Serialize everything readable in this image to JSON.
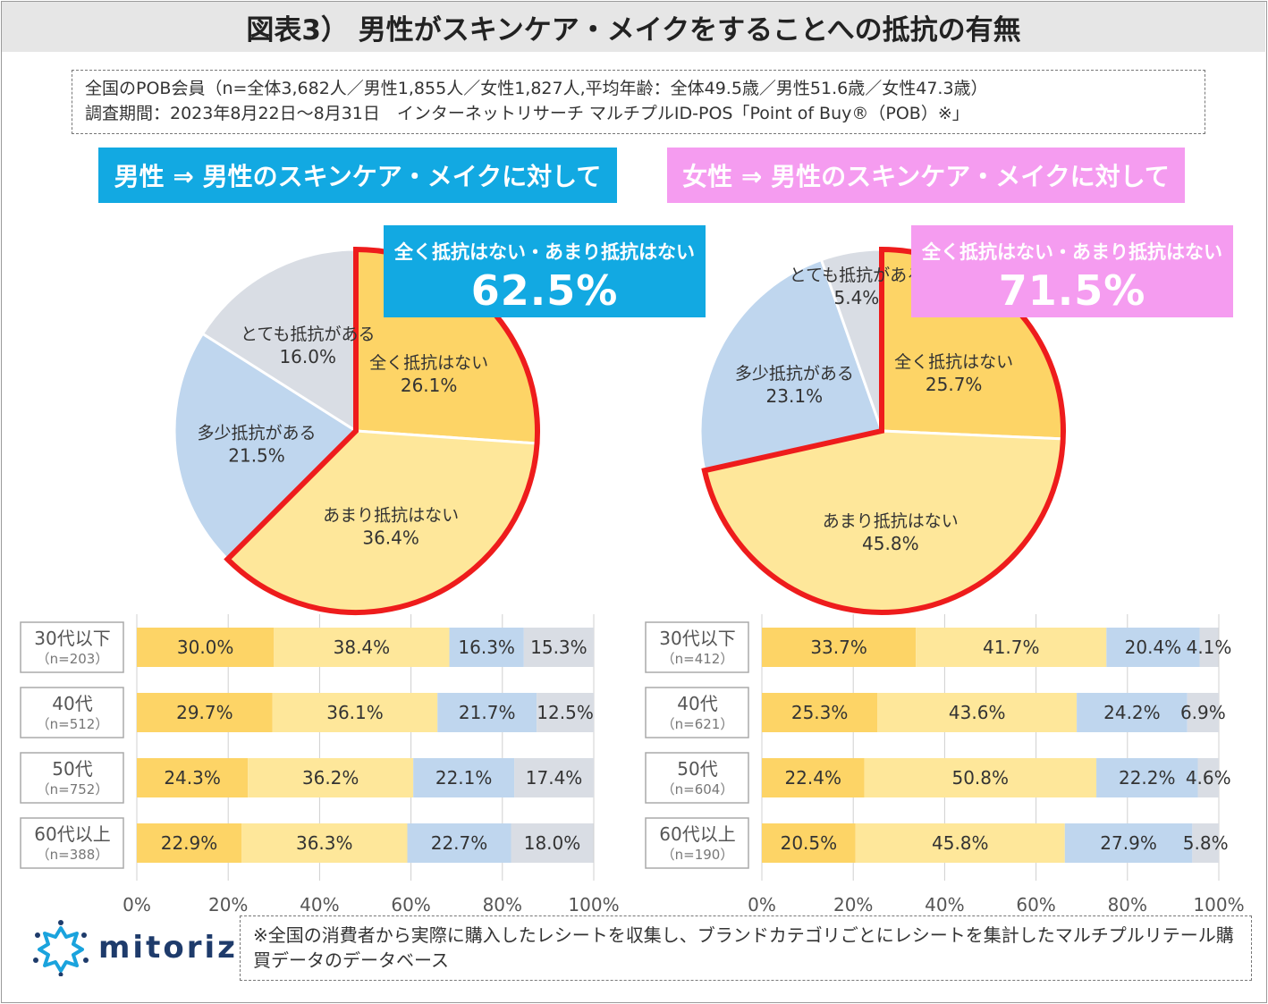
{
  "title": "図表3） 男性がスキンケア・メイクをすることへの抵抗の有無",
  "info": {
    "line1": "全国のPOB会員（n=全体3,682人／男性1,855人／女性1,827人,平均年齢：全体49.5歳／男性51.6歳／女性47.3歳）",
    "line2": "調査期間：2023年8月22日～8月31日　インターネットリサーチ マルチプルID-POS「Point of Buy®（POB）※」"
  },
  "colors": {
    "not_at_all": "#fdd466",
    "not_much": "#fee79a",
    "somewhat": "#bfd6ee",
    "very": "#d9dde4",
    "highlight": "#ee1c1c",
    "male_accent": "#12a9e2",
    "female_accent": "#f59cf0"
  },
  "footnote": "※全国の消費者から実際に購入したレシートを収集し、ブランドカテゴリごとにレシートを集計したマルチプルリテール購買データのデータベース",
  "logo": {
    "text": "mitoriz",
    "icon": "sun-burst-icon"
  },
  "chart_data": [
    {
      "type": "pie",
      "title": "男性 ⇒ 男性のスキンケア・メイクに対して",
      "callout_label": "全く抵抗はない・あまり抵抗はない",
      "callout_value": "62.5%",
      "slices": [
        {
          "label": "全く抵抗はない",
          "value": 26.1,
          "value_text": "26.1%",
          "color_key": "not_at_all"
        },
        {
          "label": "あまり抵抗はない",
          "value": 36.4,
          "value_text": "36.4%",
          "color_key": "not_much"
        },
        {
          "label": "多少抵抗がある",
          "value": 21.5,
          "value_text": "21.5%",
          "color_key": "somewhat"
        },
        {
          "label": "とても抵抗がある",
          "value": 16.0,
          "value_text": "16.0%",
          "color_key": "very"
        }
      ]
    },
    {
      "type": "pie",
      "title": "女性 ⇒ 男性のスキンケア・メイクに対して",
      "callout_label": "全く抵抗はない・あまり抵抗はない",
      "callout_value": "71.5%",
      "slices": [
        {
          "label": "全く抵抗はない",
          "value": 25.7,
          "value_text": "25.7%",
          "color_key": "not_at_all"
        },
        {
          "label": "あまり抵抗はない",
          "value": 45.8,
          "value_text": "45.8%",
          "color_key": "not_much"
        },
        {
          "label": "多少抵抗がある",
          "value": 23.1,
          "value_text": "23.1%",
          "color_key": "somewhat"
        },
        {
          "label": "とても抵抗がある",
          "value": 5.4,
          "value_text": "5.4%",
          "color_key": "very"
        }
      ]
    },
    {
      "type": "bar",
      "orientation": "horizontal-stacked",
      "group": "男性",
      "categories": [
        "30代以下",
        "40代",
        "50代",
        "60代以上"
      ],
      "n_labels": [
        "（n=203）",
        "（n=512）",
        "（n=752）",
        "（n=388）"
      ],
      "series": [
        {
          "name": "全く抵抗はない",
          "color_key": "not_at_all",
          "values": [
            30.0,
            29.7,
            24.3,
            22.9
          ],
          "labels": [
            "30.0%",
            "29.7%",
            "24.3%",
            "22.9%"
          ]
        },
        {
          "name": "あまり抵抗はない",
          "color_key": "not_much",
          "values": [
            38.4,
            36.1,
            36.2,
            36.3
          ],
          "labels": [
            "38.4%",
            "36.1%",
            "36.2%",
            "36.3%"
          ]
        },
        {
          "name": "多少抵抗がある",
          "color_key": "somewhat",
          "values": [
            16.3,
            21.7,
            22.1,
            22.7
          ],
          "labels": [
            "16.3%",
            "21.7%",
            "22.1%",
            "22.7%"
          ]
        },
        {
          "name": "とても抵抗がある",
          "color_key": "very",
          "values": [
            15.3,
            12.5,
            17.4,
            18.0
          ],
          "labels": [
            "15.3%",
            "12.5%",
            "17.4%",
            "18.0%"
          ]
        }
      ],
      "xlim": [
        0,
        100
      ],
      "xticks": [
        "0%",
        "20%",
        "40%",
        "60%",
        "80%",
        "100%"
      ],
      "grid": true
    },
    {
      "type": "bar",
      "orientation": "horizontal-stacked",
      "group": "女性",
      "categories": [
        "30代以下",
        "40代",
        "50代",
        "60代以上"
      ],
      "n_labels": [
        "（n=412）",
        "（n=621）",
        "（n=604）",
        "（n=190）"
      ],
      "series": [
        {
          "name": "全く抵抗はない",
          "color_key": "not_at_all",
          "values": [
            33.7,
            25.3,
            22.4,
            20.5
          ],
          "labels": [
            "33.7%",
            "25.3%",
            "22.4%",
            "20.5%"
          ]
        },
        {
          "name": "あまり抵抗はない",
          "color_key": "not_much",
          "values": [
            41.7,
            43.6,
            50.8,
            45.8
          ],
          "labels": [
            "41.7%",
            "43.6%",
            "50.8%",
            "45.8%"
          ]
        },
        {
          "name": "多少抵抗がある",
          "color_key": "somewhat",
          "values": [
            20.4,
            24.2,
            22.2,
            27.9
          ],
          "labels": [
            "20.4%",
            "24.2%",
            "22.2%",
            "27.9%"
          ]
        },
        {
          "name": "とても抵抗がある",
          "color_key": "very",
          "values": [
            4.1,
            6.9,
            4.6,
            5.8
          ],
          "labels": [
            "4.1%",
            "6.9%",
            "4.6%",
            "5.8%"
          ]
        }
      ],
      "xlim": [
        0,
        100
      ],
      "xticks": [
        "0%",
        "20%",
        "40%",
        "60%",
        "80%",
        "100%"
      ],
      "grid": true
    }
  ]
}
